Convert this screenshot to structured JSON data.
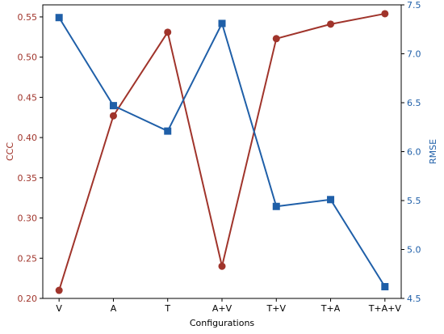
{
  "chart_data": {
    "type": "line",
    "xlabel": "Configurations",
    "categories": [
      "V",
      "A",
      "T",
      "A+V",
      "T+V",
      "T+A",
      "T+A+V"
    ],
    "left_axis": {
      "label": "CCC",
      "color": "#a0342b",
      "ylim": [
        0.2,
        0.565
      ],
      "ticks": [
        0.2,
        0.25,
        0.3,
        0.35,
        0.4,
        0.45,
        0.5,
        0.55
      ],
      "tick_labels": [
        "0.20",
        "0.25",
        "0.30",
        "0.35",
        "0.40",
        "0.45",
        "0.50",
        "0.55"
      ]
    },
    "right_axis": {
      "label": "RMSE",
      "color": "#1f5fa8",
      "ylim": [
        4.5,
        7.5
      ],
      "ticks": [
        4.5,
        5.0,
        5.5,
        6.0,
        6.5,
        7.0,
        7.5
      ],
      "tick_labels": [
        "4.5",
        "5.0",
        "5.5",
        "6.0",
        "6.5",
        "7.0",
        "7.5"
      ]
    },
    "series": [
      {
        "axis": "left",
        "marker": "circle",
        "color": "#a0342b",
        "values": [
          0.21,
          0.427,
          0.531,
          0.24,
          0.523,
          0.541,
          0.554
        ]
      },
      {
        "axis": "right",
        "marker": "square",
        "color": "#1f5fa8",
        "values": [
          7.37,
          6.47,
          6.21,
          7.31,
          5.44,
          5.51,
          4.62
        ]
      }
    ],
    "grid": false
  }
}
